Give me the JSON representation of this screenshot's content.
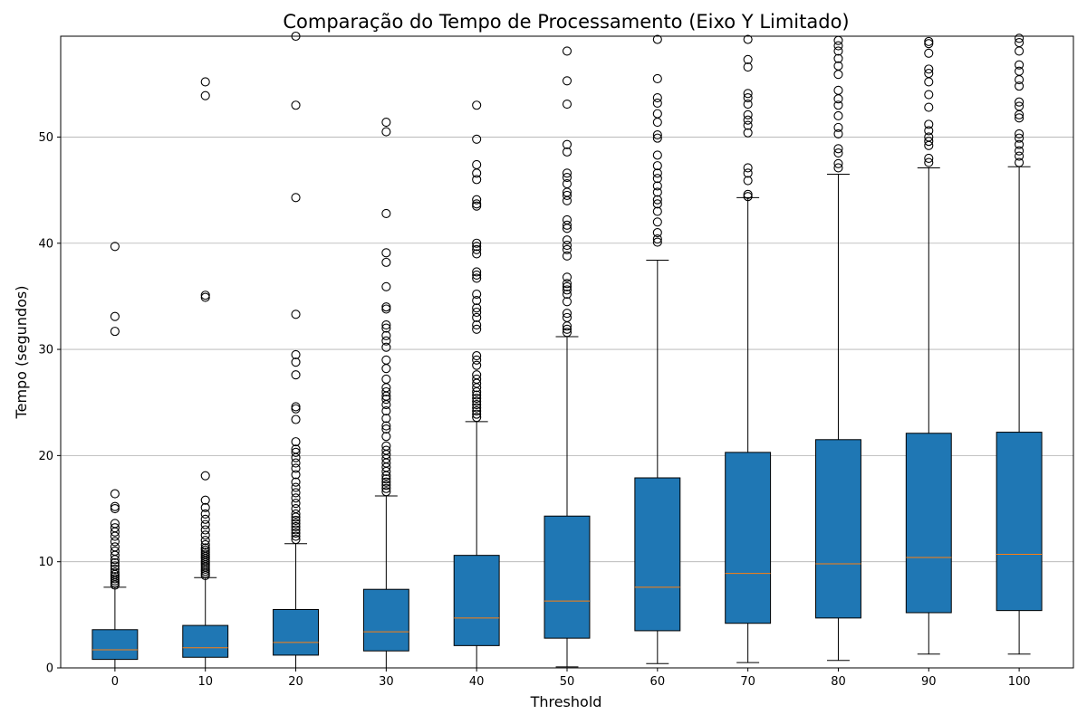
{
  "chart_data": {
    "type": "box",
    "title": "Comparação do Tempo de Processamento (Eixo Y Limitado)",
    "xlabel": "Threshold",
    "ylabel": "Tempo (segundos)",
    "ylim": [
      0,
      59.5
    ],
    "yticks": [
      0,
      10,
      20,
      30,
      40,
      50
    ],
    "grid": "y",
    "colors": {
      "box_fill": "#1f77b4",
      "median": "#ff7f0e",
      "edge": "#000000",
      "grid": "#b0b0b0"
    },
    "categories": [
      "0",
      "10",
      "20",
      "30",
      "40",
      "50",
      "60",
      "70",
      "80",
      "90",
      "100"
    ],
    "boxes": [
      {
        "category": "0",
        "whisker_low": 0.0,
        "q1": 0.8,
        "median": 1.7,
        "q3": 3.6,
        "whisker_high": 7.6,
        "outliers": [
          7.8,
          8.0,
          8.2,
          8.4,
          8.6,
          8.8,
          9.0,
          9.3,
          9.6,
          9.9,
          10.2,
          10.6,
          11.0,
          11.4,
          11.9,
          12.4,
          12.8,
          13.2,
          13.6,
          15.0,
          15.2,
          16.4,
          31.7,
          33.1,
          39.7
        ]
      },
      {
        "category": "10",
        "whisker_low": 0.0,
        "q1": 1.0,
        "median": 1.9,
        "q3": 4.0,
        "whisker_high": 8.5,
        "outliers": [
          8.7,
          8.9,
          9.1,
          9.3,
          9.5,
          9.7,
          9.9,
          10.1,
          10.3,
          10.5,
          10.7,
          10.9,
          11.1,
          11.3,
          11.6,
          12.0,
          12.5,
          13.0,
          13.5,
          14.0,
          14.5,
          15.1,
          15.8,
          18.1,
          34.9,
          35.1,
          53.9,
          55.2
        ]
      },
      {
        "category": "20",
        "whisker_low": 0.0,
        "q1": 1.2,
        "median": 2.4,
        "q3": 5.5,
        "whisker_high": 11.7,
        "outliers": [
          12.1,
          12.4,
          12.7,
          13.0,
          13.3,
          13.6,
          13.9,
          14.2,
          14.5,
          15.0,
          15.5,
          16.0,
          16.5,
          17.0,
          17.5,
          18.2,
          18.8,
          19.3,
          19.8,
          20.3,
          20.6,
          21.3,
          23.4,
          24.4,
          24.6,
          27.6,
          28.8,
          29.5,
          33.3,
          44.3,
          53.0,
          59.5
        ]
      },
      {
        "category": "30",
        "whisker_low": 0.0,
        "q1": 1.6,
        "median": 3.4,
        "q3": 7.4,
        "whisker_high": 16.2,
        "outliers": [
          16.6,
          16.9,
          17.2,
          17.5,
          17.8,
          18.1,
          18.5,
          18.9,
          19.3,
          19.7,
          20.1,
          20.5,
          20.9,
          21.8,
          22.5,
          22.8,
          23.5,
          24.2,
          24.8,
          25.3,
          25.6,
          26.0,
          26.4,
          27.2,
          28.2,
          29.0,
          30.2,
          30.8,
          31.3,
          32.0,
          32.3,
          33.8,
          34.0,
          35.9,
          38.2,
          39.1,
          42.8,
          50.5,
          51.4
        ]
      },
      {
        "category": "40",
        "whisker_low": 0.0,
        "q1": 2.1,
        "median": 4.7,
        "q3": 10.6,
        "whisker_high": 23.2,
        "outliers": [
          23.6,
          23.9,
          24.2,
          24.5,
          24.8,
          25.1,
          25.4,
          25.7,
          26.0,
          26.4,
          26.8,
          27.2,
          27.6,
          28.5,
          29.0,
          29.4,
          31.9,
          32.3,
          33.0,
          33.5,
          33.9,
          34.6,
          35.2,
          36.7,
          37.0,
          37.3,
          39.0,
          39.4,
          39.7,
          40.0,
          43.5,
          43.7,
          44.1,
          46.0,
          46.6,
          47.4,
          49.8,
          53.0
        ]
      },
      {
        "category": "50",
        "whisker_low": 0.1,
        "q1": 2.8,
        "median": 6.3,
        "q3": 14.3,
        "whisker_high": 31.2,
        "outliers": [
          31.6,
          31.9,
          32.2,
          33.0,
          33.4,
          34.5,
          35.2,
          35.6,
          35.9,
          36.2,
          36.8,
          38.8,
          39.4,
          39.8,
          40.3,
          41.4,
          41.7,
          42.2,
          44.0,
          44.5,
          44.8,
          45.6,
          46.2,
          46.6,
          48.6,
          49.3,
          53.1,
          55.3,
          58.1
        ]
      },
      {
        "category": "60",
        "whisker_low": 0.4,
        "q1": 3.5,
        "median": 7.6,
        "q3": 17.9,
        "whisker_high": 38.4,
        "outliers": [
          40.1,
          40.4,
          41.0,
          42.0,
          43.0,
          43.7,
          44.1,
          44.8,
          45.4,
          46.1,
          46.6,
          47.3,
          48.3,
          49.9,
          50.2,
          51.4,
          52.2,
          53.2,
          53.7,
          55.5,
          59.2
        ]
      },
      {
        "category": "70",
        "whisker_low": 0.5,
        "q1": 4.2,
        "median": 8.9,
        "q3": 20.3,
        "whisker_high": 44.3,
        "outliers": [
          44.4,
          44.6,
          45.9,
          46.6,
          47.1,
          50.4,
          51.1,
          51.6,
          52.1,
          53.1,
          53.7,
          54.1,
          56.6,
          57.3,
          59.2
        ]
      },
      {
        "category": "80",
        "whisker_low": 0.7,
        "q1": 4.7,
        "median": 9.8,
        "q3": 21.5,
        "whisker_high": 46.5,
        "outliers": [
          47.1,
          47.5,
          48.5,
          48.9,
          50.3,
          50.9,
          52.0,
          53.0,
          53.6,
          54.4,
          55.9,
          56.7,
          57.4,
          58.1,
          58.6,
          59.1
        ]
      },
      {
        "category": "90",
        "whisker_low": 1.3,
        "q1": 5.2,
        "median": 10.4,
        "q3": 22.1,
        "whisker_high": 47.1,
        "outliers": [
          47.6,
          48.0,
          49.2,
          49.6,
          50.0,
          50.6,
          51.2,
          52.8,
          54.0,
          55.2,
          56.0,
          56.4,
          57.9,
          58.8,
          59.0
        ]
      },
      {
        "category": "100",
        "whisker_low": 1.3,
        "q1": 5.4,
        "median": 10.7,
        "q3": 22.2,
        "whisker_high": 47.2,
        "outliers": [
          47.6,
          48.2,
          48.7,
          49.3,
          49.9,
          50.3,
          51.8,
          52.1,
          52.9,
          53.3,
          54.8,
          55.4,
          56.2,
          56.8,
          58.1,
          58.9,
          59.3
        ]
      }
    ]
  }
}
